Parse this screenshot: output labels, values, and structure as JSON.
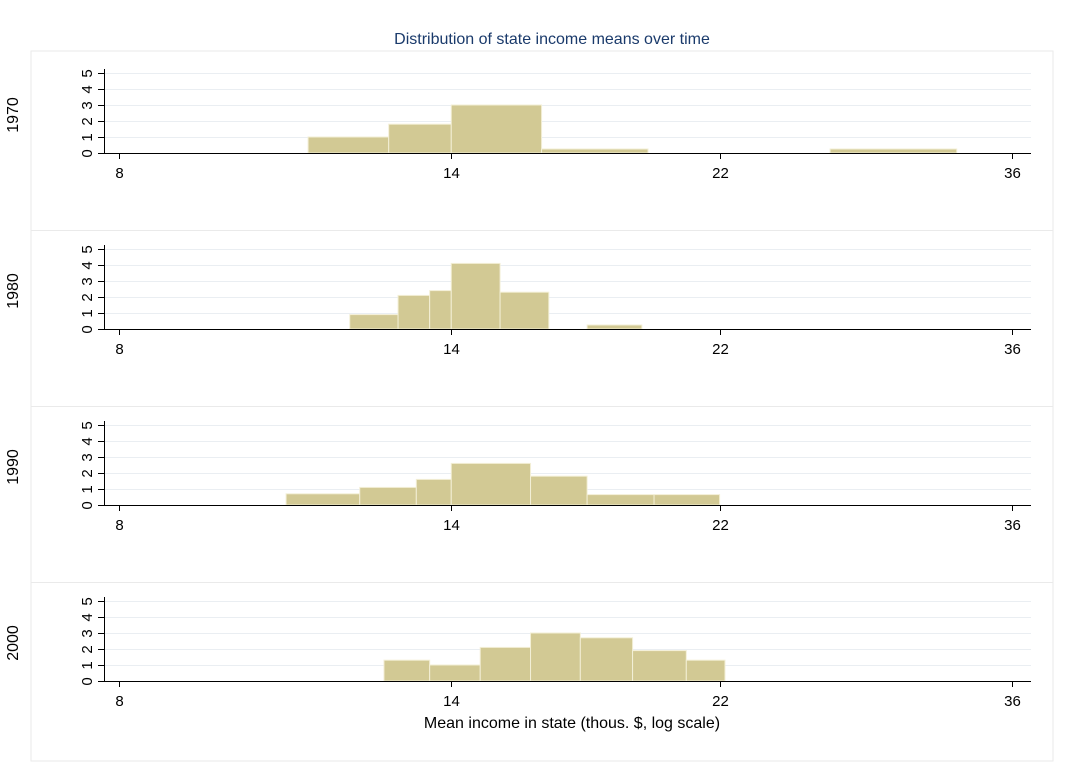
{
  "chart_data": {
    "type": "bar",
    "title": "Distribution of state income means over time",
    "xlabel": "Mean income in state (thous. $, log scale)",
    "x_scale": "log",
    "x_ticks": [
      8,
      14,
      22,
      36
    ],
    "xlim": [
      8,
      36
    ],
    "y_ticks": [
      "0",
      "1",
      "2",
      "3",
      "4",
      "5"
    ],
    "ylim": [
      0,
      5
    ],
    "grid": true,
    "bar_color": "#d2c994",
    "bar_edge_color": "#f3efd6",
    "panels": [
      {
        "label": "1970",
        "bins": [
          {
            "from": 11.0,
            "to": 12.6,
            "value": 1.0
          },
          {
            "from": 12.6,
            "to": 14.0,
            "value": 1.8
          },
          {
            "from": 14.0,
            "to": 16.3,
            "value": 3.0
          },
          {
            "from": 16.3,
            "to": 19.5,
            "value": 0.25
          },
          {
            "from": 26.5,
            "to": 32.8,
            "value": 0.25
          }
        ]
      },
      {
        "label": "1980",
        "bins": [
          {
            "from": 11.8,
            "to": 12.8,
            "value": 0.9
          },
          {
            "from": 12.8,
            "to": 13.5,
            "value": 2.1
          },
          {
            "from": 13.5,
            "to": 14.0,
            "value": 2.4
          },
          {
            "from": 14.0,
            "to": 15.2,
            "value": 4.1
          },
          {
            "from": 15.2,
            "to": 16.5,
            "value": 2.3
          },
          {
            "from": 17.6,
            "to": 19.3,
            "value": 0.25
          }
        ]
      },
      {
        "label": "1990",
        "bins": [
          {
            "from": 10.6,
            "to": 12.0,
            "value": 0.7
          },
          {
            "from": 12.0,
            "to": 13.2,
            "value": 1.1
          },
          {
            "from": 13.2,
            "to": 14.0,
            "value": 1.6
          },
          {
            "from": 14.0,
            "to": 16.0,
            "value": 2.6
          },
          {
            "from": 16.0,
            "to": 17.6,
            "value": 1.8
          },
          {
            "from": 17.6,
            "to": 19.7,
            "value": 0.65
          },
          {
            "from": 19.7,
            "to": 22.0,
            "value": 0.65
          }
        ]
      },
      {
        "label": "2000",
        "bins": [
          {
            "from": 12.5,
            "to": 13.5,
            "value": 1.3
          },
          {
            "from": 13.5,
            "to": 14.7,
            "value": 1.0
          },
          {
            "from": 14.7,
            "to": 16.0,
            "value": 2.1
          },
          {
            "from": 16.0,
            "to": 17.4,
            "value": 3.0
          },
          {
            "from": 17.4,
            "to": 19.0,
            "value": 2.7
          },
          {
            "from": 19.0,
            "to": 20.8,
            "value": 1.9
          },
          {
            "from": 20.8,
            "to": 22.2,
            "value": 1.3
          }
        ]
      }
    ]
  }
}
